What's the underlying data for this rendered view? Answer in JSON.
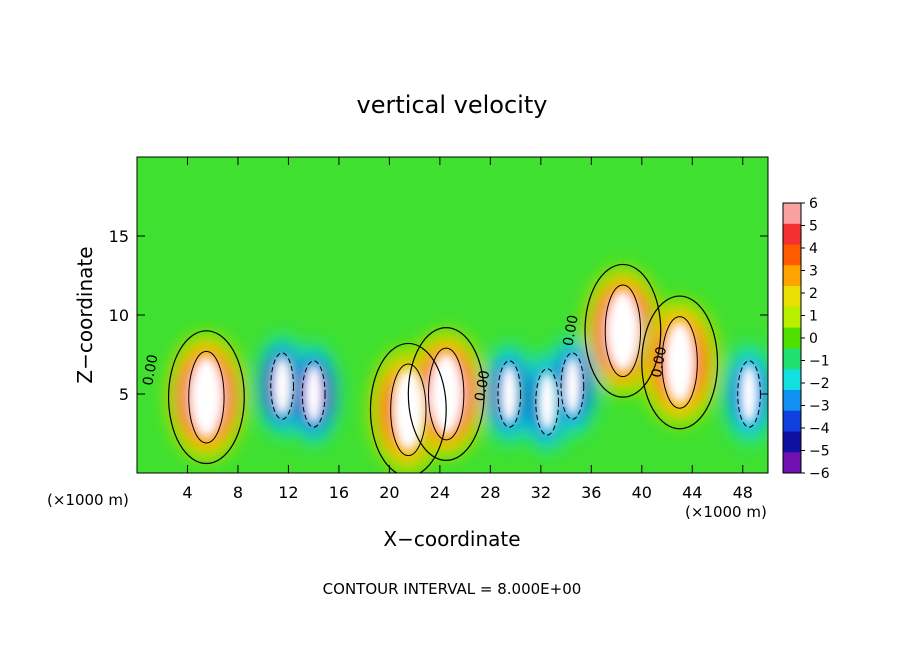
{
  "chart_data": {
    "type": "heatmap",
    "title": "vertical velocity",
    "xlabel": "X−coordinate",
    "ylabel": "Z−coordinate",
    "x_ticks": [
      4,
      8,
      12,
      16,
      20,
      24,
      28,
      32,
      36,
      40,
      44,
      48
    ],
    "y_ticks": [
      5,
      10,
      15
    ],
    "x_range": [
      0,
      50
    ],
    "y_range": [
      0,
      20
    ],
    "x_unit_label": "(×1000 m)",
    "y_unit_label": "(×1000 m)",
    "colorbar": {
      "ticks": [
        "6",
        "5",
        "4",
        "3",
        "2",
        "1",
        "0",
        "−1",
        "−2",
        "−3",
        "−4",
        "−5",
        "−6"
      ],
      "colors": [
        "#f9a0a0",
        "#f43030",
        "#ff5a00",
        "#ffa500",
        "#e8e000",
        "#b8f000",
        "#50e000",
        "#20e070",
        "#10e0e0",
        "#1090f0",
        "#1040e0",
        "#1010a0",
        "#7010b0"
      ]
    },
    "contour_interval_text": "CONTOUR INTERVAL = 8.000E+00",
    "contour_labels": [
      "0.00",
      "0.00",
      "0.00",
      "0.00"
    ],
    "updrafts": [
      {
        "x": 5.5,
        "z": 4.8,
        "w": 6
      },
      {
        "x": 21.5,
        "z": 4.0,
        "w": 5
      },
      {
        "x": 24.5,
        "z": 5.0,
        "w": 6
      },
      {
        "x": 38.5,
        "z": 9.0,
        "w": 6
      },
      {
        "x": 43.0,
        "z": 7.0,
        "w": 5
      }
    ],
    "downdrafts": [
      {
        "x": 11.5,
        "z": 5.5,
        "w": -6
      },
      {
        "x": 14.0,
        "z": 5.0,
        "w": -6
      },
      {
        "x": 29.5,
        "z": 5.0,
        "w": -5
      },
      {
        "x": 32.5,
        "z": 4.5,
        "w": -5
      },
      {
        "x": 34.5,
        "z": 5.5,
        "w": -5
      },
      {
        "x": 48.5,
        "z": 5.0,
        "w": -4
      }
    ]
  }
}
